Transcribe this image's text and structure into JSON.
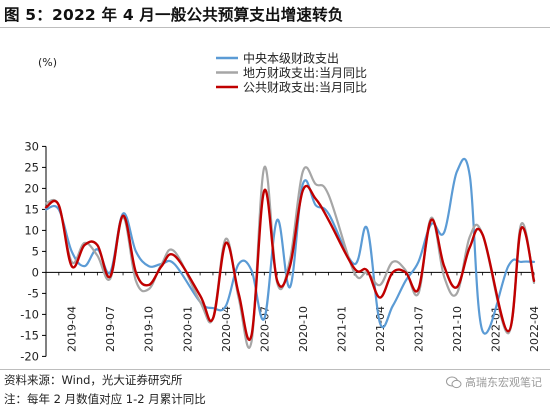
{
  "title": "图 5：2022 年 4 月一般公共预算支出增速转负",
  "footer": {
    "source": "资料来源：Wind，光大证券研究所",
    "note": "注：每年 2 月数值对应 1-2 月累计同比"
  },
  "watermark": {
    "text": "高瑞东宏观笔记",
    "icon": "wechat-icon"
  },
  "chart_data": {
    "type": "line",
    "title": "",
    "xlabel": "",
    "ylabel": "(%)",
    "ylim": [
      -20,
      30
    ],
    "yticks": [
      -20,
      -15,
      -10,
      -5,
      0,
      5,
      10,
      15,
      20,
      25,
      30
    ],
    "grid": false,
    "legend_position": "top-center",
    "x_tick_labels": [
      "2019-04",
      "2019-07",
      "2019-10",
      "2020-01",
      "2020-04",
      "2020-07",
      "2020-10",
      "2021-01",
      "2021-04",
      "2021-07",
      "2021-10",
      "2022-01",
      "2022-04"
    ],
    "x": [
      "2019-02",
      "2019-03",
      "2019-04",
      "2019-05",
      "2019-06",
      "2019-07",
      "2019-08",
      "2019-09",
      "2019-10",
      "2019-11",
      "2019-12",
      "2020-02",
      "2020-03",
      "2020-04",
      "2020-05",
      "2020-06",
      "2020-07",
      "2020-08",
      "2020-09",
      "2020-10",
      "2020-11",
      "2020-12",
      "2021-02",
      "2021-03",
      "2021-04",
      "2021-05",
      "2021-06",
      "2021-07",
      "2021-08",
      "2021-09",
      "2021-10",
      "2021-11",
      "2021-12",
      "2022-02",
      "2022-03",
      "2022-04"
    ],
    "series": [
      {
        "name": "中央本级财政支出",
        "color": "#5b9bd5",
        "values": [
          15,
          15,
          5,
          1.5,
          5.5,
          0,
          14,
          5,
          1.5,
          2,
          2,
          -7,
          -8.5,
          -8,
          2,
          0.5,
          -11,
          12.5,
          -3.5,
          21,
          16,
          14,
          2,
          10.5,
          -12,
          -8,
          -2,
          2.5,
          11.5,
          9.5,
          24,
          23,
          -14,
          1.5,
          2.5,
          2.5
        ]
      },
      {
        "name": "地方财政支出:当月同比",
        "color": "#a6a6a6",
        "values": [
          16.5,
          16,
          2.5,
          7,
          4,
          -1.5,
          13,
          -2,
          -4,
          2,
          5,
          -7,
          -11,
          8,
          -6,
          -16.5,
          25,
          -2.5,
          3,
          24,
          21,
          18.5,
          0,
          0,
          -3,
          2.5,
          0.5,
          -5,
          13,
          -1,
          -5,
          8.5,
          9,
          -14.5,
          11.5,
          -2.5
        ]
      },
      {
        "name": "公共财政支出:当月同比",
        "color": "#c00000",
        "values": [
          15.5,
          16,
          1.5,
          6.5,
          6.5,
          -1,
          13.5,
          0,
          -3,
          1.5,
          4,
          -5.5,
          -11,
          7,
          -5,
          -15,
          19.5,
          -2,
          1.5,
          19.5,
          17.5,
          12.5,
          1,
          0.5,
          -6,
          0,
          0,
          -4,
          12.5,
          1.5,
          -3.5,
          6,
          9,
          -14,
          10.5,
          -2
        ]
      }
    ]
  }
}
